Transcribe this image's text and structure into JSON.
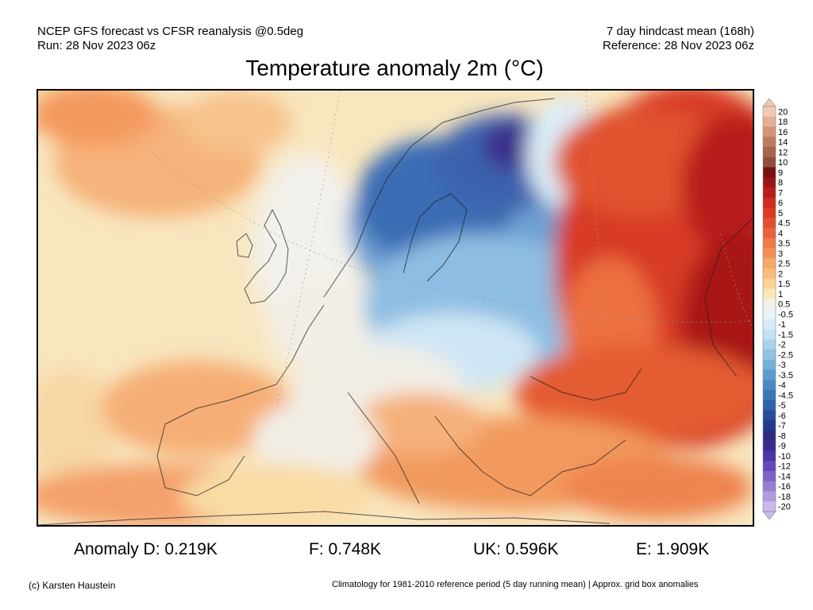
{
  "header": {
    "left_line1": "NCEP GFS forecast vs CFSR reanalysis @0.5deg",
    "left_line2": "Run: 28 Nov 2023 06z",
    "right_line1": "7 day hindcast mean (168h)",
    "right_line2": "Reference: 28 Nov 2023 06z"
  },
  "title": "Temperature anomaly 2m (°C)",
  "legend": {
    "labels": [
      "20",
      "18",
      "16",
      "14",
      "12",
      "10",
      "9",
      "8",
      "7",
      "6",
      "5",
      "4.5",
      "4",
      "3.5",
      "3",
      "2.5",
      "2",
      "1.5",
      "1",
      "0.5",
      "-0.5",
      "-1",
      "-1.5",
      "-2",
      "-2.5",
      "-3",
      "-3.5",
      "-4",
      "-4.5",
      "-5",
      "-6",
      "-7",
      "-8",
      "-9",
      "-10",
      "-12",
      "-14",
      "-16",
      "-18",
      "-20"
    ],
    "colors": [
      "#f2c9b3",
      "#e5b095",
      "#d49478",
      "#c07a60",
      "#a8644c",
      "#8f4f3c",
      "#7a0f12",
      "#9a1418",
      "#b91c1c",
      "#cf2a1e",
      "#dc3b22",
      "#e24f2c",
      "#e86338",
      "#ee7a45",
      "#f29055",
      "#f6a868",
      "#f8bd7c",
      "#fad395",
      "#fbe6b5",
      "#f5f1e8",
      "#eaf4fb",
      "#d8ecf8",
      "#c3e1f3",
      "#a9d2ec",
      "#8fc2e3",
      "#75b0d9",
      "#5d9dce",
      "#4a89c3",
      "#3b75b6",
      "#3061a9",
      "#284c9c",
      "#22398d",
      "#2a2a80",
      "#3a2a8e",
      "#4d36a0",
      "#6549b6",
      "#7e62c6",
      "#977dd4",
      "#b09be0",
      "#c9b9ec"
    ]
  },
  "map": {
    "description_regions": {
      "cold_core": "Scandinavia / NW Russia strongly negative",
      "warm_east": "Russia / Kazakhstan strongly positive"
    }
  },
  "anomalies": {
    "d": "Anomaly D: 0.219K",
    "f": "F: 0.748K",
    "uk": "UK: 0.596K",
    "e": "E: 1.909K"
  },
  "footer": {
    "left": "(c) Karsten Haustein",
    "right": "Climatology for 1981-2010 reference period (5 day running mean) | Approx. grid box anomalies"
  }
}
